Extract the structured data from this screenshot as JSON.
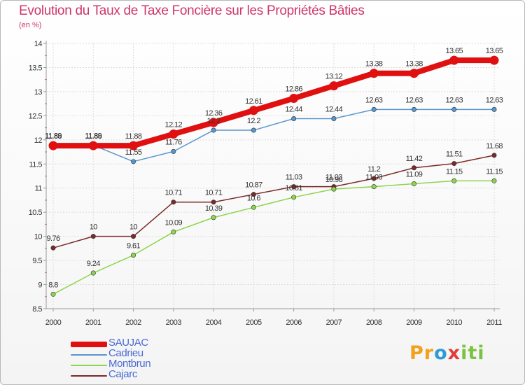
{
  "chart_data": {
    "type": "line",
    "title": "Evolution du Taux de Taxe Foncière sur les Propriétés Bâties",
    "ylabel": "(en %)",
    "xlabel": "",
    "ylim": [
      8.5,
      14
    ],
    "yticks": [
      "8.5",
      "9",
      "9.5",
      "10",
      "10.5",
      "11",
      "11.5",
      "12",
      "12.5",
      "13",
      "13.5",
      "14"
    ],
    "categories": [
      "2000",
      "2001",
      "2002",
      "2003",
      "2004",
      "2005",
      "2006",
      "2007",
      "2008",
      "2009",
      "2010",
      "2011"
    ],
    "legend_position": "bottom-left",
    "series": [
      {
        "name": "SAUJAC",
        "color": "#e01010",
        "values": [
          11.88,
          11.88,
          11.88,
          12.12,
          12.36,
          12.61,
          12.86,
          13.12,
          13.38,
          13.38,
          13.65,
          13.65
        ],
        "labels": [
          "11.88",
          "11.88",
          "11.88",
          "12.12",
          "12.36",
          "12.61",
          "12.86",
          "13.12",
          "13.38",
          "13.38",
          "13.65",
          "13.65"
        ]
      },
      {
        "name": "Cadrieu",
        "color": "#5a96cc",
        "values": [
          11.89,
          11.89,
          11.55,
          11.76,
          12.2,
          12.2,
          12.44,
          12.44,
          12.63,
          12.63,
          12.63,
          12.63
        ],
        "labels": [
          "11.89",
          "11.89",
          "11.55",
          "11.76",
          "12.2",
          "12.2",
          "12.44",
          "12.44",
          "12.63",
          "12.63",
          "12.63",
          "12.63"
        ]
      },
      {
        "name": "Montbrun",
        "color": "#8ed44c",
        "values": [
          8.8,
          9.24,
          9.61,
          10.09,
          10.39,
          10.6,
          10.81,
          10.98,
          11.03,
          11.09,
          11.15,
          11.15
        ],
        "labels": [
          "8.8",
          "9.24",
          "9.61",
          "10.09",
          "10.39",
          "10.6",
          "10.81",
          "10.98",
          "11.03",
          "11.09",
          "11.15",
          "11.15"
        ]
      },
      {
        "name": "Cajarc",
        "color": "#7a2a2a",
        "values": [
          9.76,
          10,
          10,
          10.71,
          10.71,
          10.87,
          11.03,
          11.03,
          11.2,
          11.42,
          11.51,
          11.68
        ],
        "labels": [
          "9.76",
          "10",
          "10",
          "10.71",
          "10.71",
          "10.87",
          "11.03",
          "11.03",
          "11.2",
          "11.42",
          "11.51",
          "11.68"
        ]
      }
    ]
  },
  "logo": {
    "p1": "Pr",
    "p2": "o",
    "p3": "x",
    "p4": "iti"
  }
}
